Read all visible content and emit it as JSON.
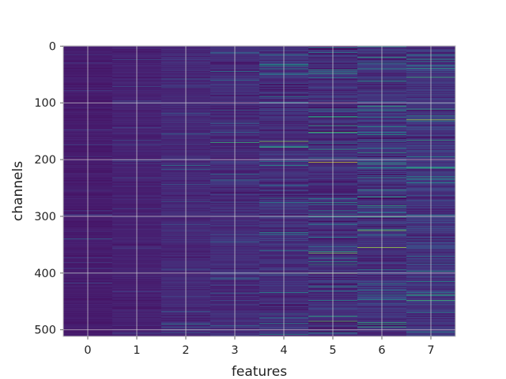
{
  "chart_data": {
    "type": "heatmap",
    "title": "",
    "xlabel": "features",
    "ylabel": "channels",
    "x_categories": [
      "0",
      "1",
      "2",
      "3",
      "4",
      "5",
      "6",
      "7"
    ],
    "y_ticks": [
      0,
      100,
      200,
      300,
      400,
      500
    ],
    "ylim": [
      0,
      512
    ],
    "n_rows": 512,
    "n_cols": 8,
    "y_inverted": true,
    "grid": true,
    "colormap": "viridis",
    "colors": {
      "grid": "#d9d9d9",
      "spine": "#bfbfbf",
      "background": "#ffffff"
    },
    "column_profiles": [
      {
        "feature": "0",
        "mean": 0.1,
        "spread": 0.05
      },
      {
        "feature": "1",
        "mean": 0.12,
        "spread": 0.06
      },
      {
        "feature": "2",
        "mean": 0.15,
        "spread": 0.09
      },
      {
        "feature": "3",
        "mean": 0.16,
        "spread": 0.13
      },
      {
        "feature": "4",
        "mean": 0.17,
        "spread": 0.16
      },
      {
        "feature": "5",
        "mean": 0.16,
        "spread": 0.18
      },
      {
        "feature": "6",
        "mean": 0.18,
        "spread": 0.19
      },
      {
        "feature": "7",
        "mean": 0.2,
        "spread": 0.18
      }
    ],
    "bright_rows": [
      {
        "feature": "0",
        "channel": 340,
        "value": 0.45
      },
      {
        "feature": "0",
        "channel": 400,
        "value": 0.45
      },
      {
        "feature": "1",
        "channel": 100,
        "value": 0.35
      },
      {
        "feature": "1",
        "channel": 400,
        "value": 0.4
      },
      {
        "feature": "2",
        "channel": 155,
        "value": 0.45
      },
      {
        "feature": "2",
        "channel": 210,
        "value": 0.55
      },
      {
        "feature": "2",
        "channel": 490,
        "value": 0.55
      },
      {
        "feature": "3",
        "channel": 170,
        "value": 0.75
      },
      {
        "feature": "3",
        "channel": 410,
        "value": 0.55
      },
      {
        "feature": "4",
        "channel": 168,
        "value": 0.85
      },
      {
        "feature": "4",
        "channel": 178,
        "value": 0.75
      },
      {
        "feature": "4",
        "channel": 210,
        "value": 0.65
      },
      {
        "feature": "4",
        "channel": 400,
        "value": 0.75
      },
      {
        "feature": "5",
        "channel": 45,
        "value": 0.6
      },
      {
        "feature": "5",
        "channel": 140,
        "value": 0.7
      },
      {
        "feature": "5",
        "channel": 205,
        "value": 0.95
      },
      {
        "feature": "5",
        "channel": 300,
        "value": 0.6
      },
      {
        "feature": "5",
        "channel": 365,
        "value": 0.85
      },
      {
        "feature": "5",
        "channel": 400,
        "value": 0.92
      },
      {
        "feature": "5",
        "channel": 485,
        "value": 0.8
      },
      {
        "feature": "6",
        "channel": 60,
        "value": 0.6
      },
      {
        "feature": "6",
        "channel": 180,
        "value": 0.6
      },
      {
        "feature": "6",
        "channel": 205,
        "value": 0.65
      },
      {
        "feature": "6",
        "channel": 325,
        "value": 0.85
      },
      {
        "feature": "6",
        "channel": 355,
        "value": 0.9
      },
      {
        "feature": "6",
        "channel": 490,
        "value": 0.7
      },
      {
        "feature": "7",
        "channel": 15,
        "value": 0.6
      },
      {
        "feature": "7",
        "channel": 130,
        "value": 0.9
      },
      {
        "feature": "7",
        "channel": 195,
        "value": 0.6
      },
      {
        "feature": "7",
        "channel": 300,
        "value": 0.6
      },
      {
        "feature": "7",
        "channel": 440,
        "value": 0.55
      }
    ],
    "dark_rows": [
      {
        "feature": "3",
        "channel": 30,
        "value": 0.0
      },
      {
        "feature": "5",
        "channel": 5,
        "value": 0.0
      },
      {
        "feature": "5",
        "channel": 150,
        "value": 0.0
      },
      {
        "feature": "6",
        "channel": 75,
        "value": 0.0
      },
      {
        "feature": "6",
        "channel": 250,
        "value": 0.0
      },
      {
        "feature": "7",
        "channel": 340,
        "value": 0.0
      },
      {
        "feature": "7",
        "channel": 160,
        "value": 0.0
      }
    ]
  }
}
